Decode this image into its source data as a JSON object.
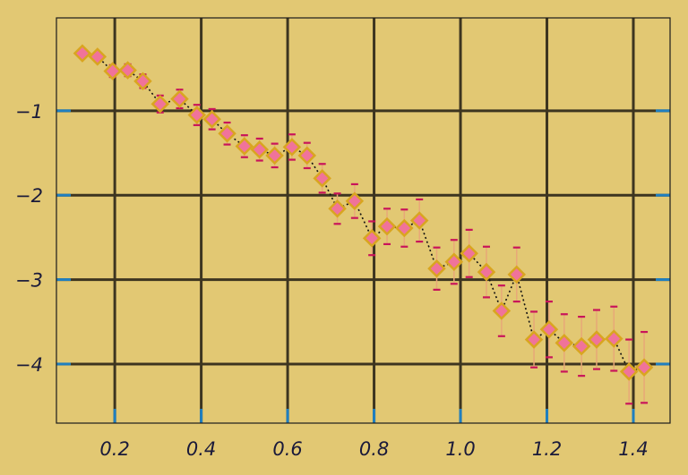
{
  "chart_data": {
    "type": "scatter",
    "title": "",
    "xlabel": "",
    "ylabel": "",
    "xlim": [
      0.065,
      1.485
    ],
    "ylim": [
      -4.7,
      0.1
    ],
    "xticks": [
      0.2,
      0.4,
      0.6,
      0.8,
      1.0,
      1.2,
      1.4
    ],
    "xtick_labels": [
      "0.2",
      "0.4",
      "0.6",
      "0.8",
      "1.0",
      "1.2",
      "1.4"
    ],
    "yticks": [
      -1,
      -2,
      -3,
      -4
    ],
    "ytick_labels": [
      "−1",
      "−2",
      "−3",
      "−4"
    ],
    "grid": true,
    "legend": "none",
    "colors": {
      "background": "#e2c873",
      "grid": "#3d3520",
      "tick": "#1f7fc0",
      "marker_edge": "#d9a520",
      "marker_fill": "#f0739a",
      "error_bar": "#e8a878",
      "error_cap": "#c8145a",
      "line": "#111111"
    },
    "series": [
      {
        "x": [
          0.125,
          0.16,
          0.195,
          0.23,
          0.265,
          0.305,
          0.35,
          0.39,
          0.425,
          0.46,
          0.5,
          0.535,
          0.57,
          0.61,
          0.645,
          0.68,
          0.715,
          0.755,
          0.795,
          0.83,
          0.87,
          0.905,
          0.945,
          0.985,
          1.02,
          1.06,
          1.095,
          1.13,
          1.17,
          1.205,
          1.24,
          1.28,
          1.315,
          1.355,
          1.39,
          1.425
        ],
        "y": [
          -0.32,
          -0.36,
          -0.53,
          -0.52,
          -0.65,
          -0.92,
          -0.86,
          -1.05,
          -1.1,
          -1.27,
          -1.42,
          -1.46,
          -1.53,
          -1.43,
          -1.53,
          -1.8,
          -2.16,
          -2.07,
          -2.51,
          -2.37,
          -2.39,
          -2.3,
          -2.87,
          -2.79,
          -2.69,
          -2.91,
          -3.37,
          -2.94,
          -3.71,
          -3.59,
          -3.75,
          -3.79,
          -3.71,
          -3.7,
          -4.09,
          -4.04
        ],
        "yerr": [
          0.04,
          0.05,
          0.07,
          0.07,
          0.08,
          0.1,
          0.11,
          0.12,
          0.12,
          0.13,
          0.13,
          0.13,
          0.14,
          0.15,
          0.15,
          0.17,
          0.18,
          0.2,
          0.2,
          0.21,
          0.22,
          0.25,
          0.25,
          0.26,
          0.28,
          0.3,
          0.3,
          0.32,
          0.33,
          0.33,
          0.34,
          0.35,
          0.35,
          0.38,
          0.38,
          0.42
        ]
      }
    ]
  }
}
